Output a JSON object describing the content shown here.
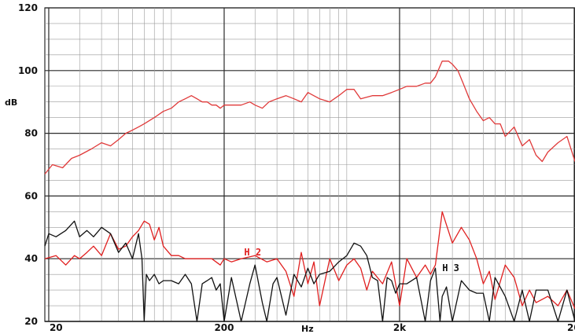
{
  "chart_data": {
    "type": "line",
    "title": "",
    "xlabel": "Hz",
    "ylabel": "dB",
    "x_scale": "log",
    "xlim": [
      19,
      20000
    ],
    "ylim": [
      20,
      120
    ],
    "grid": true,
    "x_ticks": [
      {
        "value": 20,
        "label": "20"
      },
      {
        "value": 200,
        "label": "200"
      },
      {
        "value": 2000,
        "label": "2k"
      },
      {
        "value": 20000,
        "label": "20k"
      }
    ],
    "y_ticks": [
      20,
      40,
      60,
      80,
      100,
      120
    ],
    "colors": {
      "fundamental": "#e03a3a",
      "h2": "#e02020",
      "h3": "#111111",
      "grid": "#9a9a9a",
      "major_grid": "#2a2a2a"
    },
    "annotations": [
      {
        "text": "H 2",
        "x": 260,
        "y": 42,
        "color": "#e02020"
      },
      {
        "text": "H 3",
        "x": 3500,
        "y": 37,
        "color": "#111111"
      }
    ],
    "series": [
      {
        "key": "fundamental",
        "x": [
          19,
          21,
          24,
          27,
          30,
          35,
          40,
          45,
          50,
          55,
          60,
          65,
          70,
          80,
          90,
          100,
          110,
          120,
          130,
          140,
          150,
          160,
          170,
          180,
          190,
          200,
          220,
          250,
          280,
          300,
          330,
          360,
          400,
          450,
          500,
          550,
          600,
          700,
          800,
          900,
          1000,
          1100,
          1200,
          1400,
          1600,
          1800,
          2000,
          2200,
          2500,
          2800,
          3000,
          3200,
          3500,
          3800,
          4000,
          4300,
          4600,
          5000,
          5500,
          6000,
          6500,
          7000,
          7500,
          8000,
          9000,
          10000,
          11000,
          12000,
          13000,
          14000,
          16000,
          18000,
          20000
        ],
        "y": [
          67,
          70,
          69,
          72,
          73,
          75,
          77,
          76,
          78,
          80,
          81,
          82,
          83,
          85,
          87,
          88,
          90,
          91,
          92,
          91,
          90,
          90,
          89,
          89,
          88,
          89,
          89,
          89,
          90,
          89,
          88,
          90,
          91,
          92,
          91,
          90,
          93,
          91,
          90,
          92,
          94,
          94,
          91,
          92,
          92,
          93,
          94,
          95,
          95,
          96,
          96,
          98,
          103,
          103,
          102,
          100,
          96,
          91,
          87,
          84,
          85,
          83,
          83,
          79,
          82,
          76,
          78,
          73,
          71,
          74,
          77,
          79,
          71
        ]
      },
      {
        "key": "h2",
        "x": [
          19,
          22,
          25,
          28,
          30,
          33,
          36,
          40,
          45,
          50,
          55,
          60,
          65,
          70,
          75,
          80,
          85,
          90,
          100,
          110,
          120,
          130,
          150,
          170,
          190,
          200,
          220,
          250,
          300,
          350,
          400,
          450,
          500,
          550,
          600,
          650,
          700,
          800,
          900,
          1000,
          1100,
          1200,
          1300,
          1400,
          1600,
          1800,
          2000,
          2200,
          2500,
          2800,
          3000,
          3200,
          3500,
          4000,
          4500,
          5000,
          5500,
          6000,
          6500,
          7000,
          8000,
          9000,
          10000,
          11000,
          12000,
          14000,
          16000,
          18000,
          20000
        ],
        "y": [
          40,
          41,
          38,
          41,
          40,
          42,
          44,
          41,
          48,
          43,
          44,
          47,
          49,
          52,
          51,
          46,
          50,
          44,
          41,
          41,
          40,
          40,
          40,
          40,
          38,
          40,
          39,
          40,
          41,
          39,
          40,
          36,
          28,
          42,
          32,
          39,
          25,
          40,
          33,
          38,
          40,
          37,
          30,
          36,
          32,
          39,
          25,
          40,
          34,
          38,
          35,
          38,
          55,
          45,
          50,
          46,
          40,
          32,
          36,
          27,
          38,
          34,
          25,
          30,
          26,
          28,
          25,
          30,
          24
        ]
      },
      {
        "key": "h3",
        "x": [
          19,
          20,
          22,
          25,
          28,
          30,
          33,
          36,
          40,
          45,
          50,
          55,
          60,
          65,
          68,
          70,
          72,
          75,
          80,
          85,
          90,
          100,
          110,
          120,
          130,
          140,
          150,
          160,
          170,
          180,
          190,
          200,
          220,
          250,
          280,
          300,
          330,
          350,
          380,
          400,
          450,
          500,
          550,
          600,
          650,
          700,
          800,
          900,
          1000,
          1100,
          1200,
          1300,
          1400,
          1500,
          1600,
          1700,
          1800,
          1900,
          2000,
          2200,
          2500,
          2800,
          3000,
          3200,
          3400,
          3500,
          3700,
          4000,
          4500,
          5000,
          5500,
          6000,
          6500,
          7000,
          8000,
          9000,
          10000,
          11000,
          12000,
          14000,
          16000,
          18000,
          20000
        ],
        "y": [
          44,
          48,
          47,
          49,
          52,
          47,
          49,
          47,
          50,
          48,
          42,
          45,
          40,
          48,
          40,
          20,
          35,
          33,
          35,
          32,
          33,
          33,
          32,
          35,
          32,
          20,
          32,
          33,
          34,
          30,
          32,
          20,
          34,
          20,
          32,
          38,
          26,
          20,
          32,
          34,
          22,
          35,
          31,
          37,
          32,
          35,
          36,
          39,
          41,
          45,
          44,
          41,
          34,
          33,
          20,
          34,
          33,
          29,
          32,
          32,
          34,
          20,
          33,
          37,
          20,
          28,
          31,
          20,
          33,
          30,
          29,
          29,
          20,
          34,
          28,
          20,
          30,
          20,
          30,
          30,
          20,
          30,
          20
        ]
      }
    ]
  }
}
